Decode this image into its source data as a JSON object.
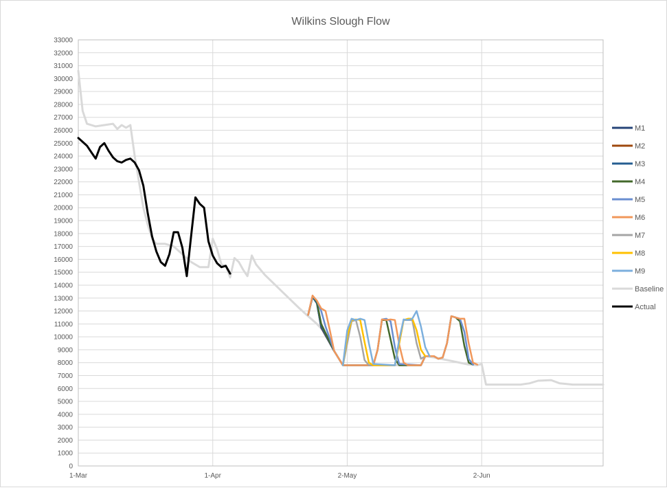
{
  "chart_data": {
    "type": "line",
    "title": "Wilkins Slough Flow",
    "xlabel": "",
    "ylabel": "",
    "x_range": [
      "2023-03-01",
      "2023-06-30"
    ],
    "x_ticks": [
      {
        "date": "2023-03-01",
        "label": "1-Mar"
      },
      {
        "date": "2023-04-01",
        "label": "1-Apr"
      },
      {
        "date": "2023-05-02",
        "label": "2-May"
      },
      {
        "date": "2023-06-02",
        "label": "2-Jun"
      }
    ],
    "ylim": [
      0,
      33000
    ],
    "y_step": 1000,
    "grid": true,
    "legend_position": "right",
    "series": [
      {
        "name": "M1",
        "color": "#264478",
        "points": [
          [
            "2023-04-23",
            11700
          ],
          [
            "2023-04-24",
            13100
          ],
          [
            "2023-04-25",
            12600
          ],
          [
            "2023-04-26",
            10700
          ],
          [
            "2023-04-27",
            10100
          ],
          [
            "2023-04-29",
            8900
          ]
        ]
      },
      {
        "name": "M2",
        "color": "#9E480E",
        "points": [
          [
            "2023-04-23",
            11700
          ],
          [
            "2023-04-24",
            13150
          ],
          [
            "2023-04-25",
            12650
          ],
          [
            "2023-04-26",
            10750
          ],
          [
            "2023-04-27",
            10150
          ],
          [
            "2023-04-29",
            8900
          ]
        ]
      },
      {
        "name": "M3",
        "color": "#255E91",
        "points": [
          [
            "2023-04-23",
            11700
          ],
          [
            "2023-04-24",
            13100
          ],
          [
            "2023-04-25",
            12600
          ],
          [
            "2023-04-26",
            10800
          ],
          [
            "2023-04-27",
            10200
          ],
          [
            "2023-04-29",
            8900
          ]
        ]
      },
      {
        "name": "M4",
        "color": "#43682B",
        "points": [
          [
            "2023-04-23",
            11700
          ],
          [
            "2023-04-24",
            13150
          ],
          [
            "2023-04-25",
            12700
          ],
          [
            "2023-04-26",
            11000
          ],
          [
            "2023-04-27",
            10300
          ],
          [
            "2023-04-29",
            8900
          ],
          [
            "2023-05-01",
            7800
          ],
          [
            "2023-05-08",
            7800
          ],
          [
            "2023-05-09",
            9000
          ],
          [
            "2023-05-10",
            11300
          ],
          [
            "2023-05-11",
            11300
          ],
          [
            "2023-05-12",
            9800
          ],
          [
            "2023-05-13",
            8300
          ],
          [
            "2023-05-14",
            7800
          ],
          [
            "2023-05-19",
            7800
          ],
          [
            "2023-05-20",
            8500
          ],
          [
            "2023-05-22",
            8500
          ],
          [
            "2023-05-23",
            8300
          ],
          [
            "2023-05-24",
            8400
          ],
          [
            "2023-05-25",
            9500
          ],
          [
            "2023-05-26",
            11600
          ],
          [
            "2023-05-27",
            11500
          ],
          [
            "2023-05-28",
            11200
          ],
          [
            "2023-05-29",
            9300
          ],
          [
            "2023-05-30",
            8000
          ],
          [
            "2023-05-31",
            7850
          ]
        ]
      },
      {
        "name": "M5",
        "color": "#698ED0",
        "points": [
          [
            "2023-04-23",
            11700
          ],
          [
            "2023-04-24",
            13150
          ],
          [
            "2023-04-25",
            12800
          ],
          [
            "2023-04-26",
            12000
          ],
          [
            "2023-04-27",
            10800
          ],
          [
            "2023-04-29",
            8900
          ],
          [
            "2023-05-01",
            7800
          ],
          [
            "2023-05-08",
            7800
          ],
          [
            "2023-05-09",
            9000
          ],
          [
            "2023-05-10",
            11350
          ],
          [
            "2023-05-11",
            11400
          ],
          [
            "2023-05-12",
            11200
          ],
          [
            "2023-05-13",
            9200
          ],
          [
            "2023-05-14",
            7900
          ],
          [
            "2023-05-19",
            7800
          ],
          [
            "2023-05-20",
            8500
          ],
          [
            "2023-05-22",
            8500
          ],
          [
            "2023-05-23",
            8300
          ],
          [
            "2023-05-24",
            8400
          ],
          [
            "2023-05-25",
            9500
          ],
          [
            "2023-05-26",
            11600
          ],
          [
            "2023-05-27",
            11500
          ],
          [
            "2023-05-28",
            11400
          ],
          [
            "2023-05-29",
            10400
          ],
          [
            "2023-05-30",
            8300
          ],
          [
            "2023-05-31",
            7850
          ]
        ]
      },
      {
        "name": "M6",
        "color": "#F1975A",
        "points": [
          [
            "2023-04-23",
            11700
          ],
          [
            "2023-04-24",
            13200
          ],
          [
            "2023-04-25",
            12800
          ],
          [
            "2023-04-26",
            12200
          ],
          [
            "2023-04-27",
            12000
          ],
          [
            "2023-04-28",
            10500
          ],
          [
            "2023-04-29",
            8900
          ],
          [
            "2023-05-01",
            7800
          ],
          [
            "2023-05-08",
            7800
          ],
          [
            "2023-05-09",
            9000
          ],
          [
            "2023-05-10",
            11350
          ],
          [
            "2023-05-11",
            11300
          ],
          [
            "2023-05-12",
            11350
          ],
          [
            "2023-05-13",
            11300
          ],
          [
            "2023-05-14",
            9400
          ],
          [
            "2023-05-15",
            8000
          ],
          [
            "2023-05-16",
            7800
          ],
          [
            "2023-05-19",
            7800
          ],
          [
            "2023-05-20",
            8500
          ],
          [
            "2023-05-22",
            8500
          ],
          [
            "2023-05-23",
            8300
          ],
          [
            "2023-05-24",
            8400
          ],
          [
            "2023-05-25",
            9500
          ],
          [
            "2023-05-26",
            11600
          ],
          [
            "2023-05-27",
            11500
          ],
          [
            "2023-05-28",
            11400
          ],
          [
            "2023-05-29",
            11400
          ],
          [
            "2023-05-30",
            9500
          ],
          [
            "2023-05-31",
            8000
          ],
          [
            "2023-06-01",
            7850
          ]
        ]
      },
      {
        "name": "M7",
        "color": "#A5A5A5",
        "points": [
          [
            "2023-05-01",
            7800
          ],
          [
            "2023-05-02",
            9500
          ],
          [
            "2023-05-03",
            11200
          ],
          [
            "2023-05-04",
            11300
          ],
          [
            "2023-05-05",
            10000
          ],
          [
            "2023-05-06",
            8200
          ],
          [
            "2023-05-07",
            7800
          ],
          [
            "2023-05-13",
            7800
          ],
          [
            "2023-05-14",
            9500
          ],
          [
            "2023-05-15",
            11300
          ],
          [
            "2023-05-16",
            11300
          ],
          [
            "2023-05-17",
            11300
          ],
          [
            "2023-05-18",
            9500
          ],
          [
            "2023-05-19",
            8300
          ],
          [
            "2023-05-20",
            8500
          ]
        ]
      },
      {
        "name": "M8",
        "color": "#FFC000",
        "points": [
          [
            "2023-05-01",
            7800
          ],
          [
            "2023-05-02",
            10000
          ],
          [
            "2023-05-03",
            11300
          ],
          [
            "2023-05-04",
            11350
          ],
          [
            "2023-05-05",
            11300
          ],
          [
            "2023-05-06",
            9600
          ],
          [
            "2023-05-07",
            8000
          ],
          [
            "2023-05-08",
            7800
          ],
          [
            "2023-05-13",
            7800
          ],
          [
            "2023-05-14",
            9500
          ],
          [
            "2023-05-15",
            11300
          ],
          [
            "2023-05-16",
            11400
          ],
          [
            "2023-05-17",
            11400
          ],
          [
            "2023-05-18",
            10500
          ],
          [
            "2023-05-19",
            9000
          ],
          [
            "2023-05-20",
            8500
          ]
        ]
      },
      {
        "name": "M9",
        "color": "#7CAFDD",
        "points": [
          [
            "2023-05-01",
            7800
          ],
          [
            "2023-05-02",
            10500
          ],
          [
            "2023-05-03",
            11400
          ],
          [
            "2023-05-04",
            11300
          ],
          [
            "2023-05-05",
            11400
          ],
          [
            "2023-05-06",
            11300
          ],
          [
            "2023-05-07",
            9500
          ],
          [
            "2023-05-08",
            7900
          ],
          [
            "2023-05-13",
            7800
          ],
          [
            "2023-05-14",
            9800
          ],
          [
            "2023-05-15",
            11350
          ],
          [
            "2023-05-16",
            11300
          ],
          [
            "2023-05-17",
            11400
          ],
          [
            "2023-05-18",
            12000
          ],
          [
            "2023-05-19",
            10800
          ],
          [
            "2023-05-20",
            9200
          ],
          [
            "2023-05-21",
            8500
          ]
        ]
      },
      {
        "name": "Baseline",
        "color": "#D9D9D9",
        "points": [
          [
            "2023-03-01",
            30600
          ],
          [
            "2023-03-02",
            27500
          ],
          [
            "2023-03-03",
            26500
          ],
          [
            "2023-03-05",
            26300
          ],
          [
            "2023-03-07",
            26400
          ],
          [
            "2023-03-09",
            26500
          ],
          [
            "2023-03-10",
            26100
          ],
          [
            "2023-03-11",
            26400
          ],
          [
            "2023-03-12",
            26200
          ],
          [
            "2023-03-13",
            26400
          ],
          [
            "2023-03-14",
            24000
          ],
          [
            "2023-03-15",
            22000
          ],
          [
            "2023-03-16",
            20000
          ],
          [
            "2023-03-17",
            18700
          ],
          [
            "2023-03-18",
            17600
          ],
          [
            "2023-03-19",
            17200
          ],
          [
            "2023-03-21",
            17200
          ],
          [
            "2023-03-23",
            17000
          ],
          [
            "2023-03-25",
            16400
          ],
          [
            "2023-03-27",
            15800
          ],
          [
            "2023-03-29",
            15400
          ],
          [
            "2023-03-31",
            15400
          ],
          [
            "2023-04-01",
            17600
          ],
          [
            "2023-04-02",
            16800
          ],
          [
            "2023-04-03",
            15600
          ],
          [
            "2023-04-04",
            15500
          ],
          [
            "2023-04-05",
            14600
          ],
          [
            "2023-04-06",
            16100
          ],
          [
            "2023-04-07",
            15800
          ],
          [
            "2023-04-08",
            15200
          ],
          [
            "2023-04-09",
            14700
          ],
          [
            "2023-04-10",
            16300
          ],
          [
            "2023-04-11",
            15600
          ],
          [
            "2023-04-13",
            14800
          ],
          [
            "2023-04-17",
            13500
          ],
          [
            "2023-04-21",
            12200
          ],
          [
            "2023-04-23",
            11600
          ],
          [
            "2023-04-25",
            11000
          ],
          [
            "2023-04-27",
            10300
          ],
          [
            "2023-04-29",
            8900
          ],
          [
            "2023-05-01",
            7800
          ],
          [
            "2023-05-13",
            7800
          ],
          [
            "2023-05-19",
            7800
          ],
          [
            "2023-05-20",
            8500
          ],
          [
            "2023-05-22",
            8400
          ],
          [
            "2023-05-25",
            8200
          ],
          [
            "2023-05-30",
            7850
          ],
          [
            "2023-06-01",
            7800
          ],
          [
            "2023-06-02",
            7900
          ],
          [
            "2023-06-03",
            6300
          ],
          [
            "2023-06-11",
            6300
          ],
          [
            "2023-06-13",
            6400
          ],
          [
            "2023-06-15",
            6600
          ],
          [
            "2023-06-18",
            6650
          ],
          [
            "2023-06-20",
            6400
          ],
          [
            "2023-06-23",
            6300
          ],
          [
            "2023-06-30",
            6300
          ]
        ]
      },
      {
        "name": "Actual",
        "color": "#000000",
        "points": [
          [
            "2023-03-01",
            25400
          ],
          [
            "2023-03-02",
            25100
          ],
          [
            "2023-03-03",
            24800
          ],
          [
            "2023-03-04",
            24300
          ],
          [
            "2023-03-05",
            23800
          ],
          [
            "2023-03-06",
            24700
          ],
          [
            "2023-03-07",
            25000
          ],
          [
            "2023-03-08",
            24400
          ],
          [
            "2023-03-09",
            23900
          ],
          [
            "2023-03-10",
            23600
          ],
          [
            "2023-03-11",
            23500
          ],
          [
            "2023-03-12",
            23700
          ],
          [
            "2023-03-13",
            23800
          ],
          [
            "2023-03-14",
            23500
          ],
          [
            "2023-03-15",
            22900
          ],
          [
            "2023-03-16",
            21700
          ],
          [
            "2023-03-17",
            19600
          ],
          [
            "2023-03-18",
            17800
          ],
          [
            "2023-03-19",
            16600
          ],
          [
            "2023-03-20",
            15800
          ],
          [
            "2023-03-21",
            15500
          ],
          [
            "2023-03-22",
            16400
          ],
          [
            "2023-03-23",
            18100
          ],
          [
            "2023-03-24",
            18100
          ],
          [
            "2023-03-25",
            16900
          ],
          [
            "2023-03-26",
            14700
          ],
          [
            "2023-03-27",
            17800
          ],
          [
            "2023-03-28",
            20800
          ],
          [
            "2023-03-29",
            20300
          ],
          [
            "2023-03-30",
            20000
          ],
          [
            "2023-03-31",
            17400
          ],
          [
            "2023-04-01",
            16300
          ],
          [
            "2023-04-02",
            15700
          ],
          [
            "2023-04-03",
            15400
          ],
          [
            "2023-04-04",
            15500
          ],
          [
            "2023-04-05",
            14900
          ]
        ]
      }
    ],
    "y_tick_labels": [
      "0",
      "1000",
      "2000",
      "3000",
      "4000",
      "5000",
      "6000",
      "7000",
      "8000",
      "9000",
      "10000",
      "11000",
      "12000",
      "13000",
      "14000",
      "15000",
      "16000",
      "17000",
      "18000",
      "19000",
      "20000",
      "21000",
      "22000",
      "23000",
      "24000",
      "25000",
      "26000",
      "27000",
      "28000",
      "29000",
      "30000",
      "31000",
      "32000",
      "33000"
    ]
  }
}
